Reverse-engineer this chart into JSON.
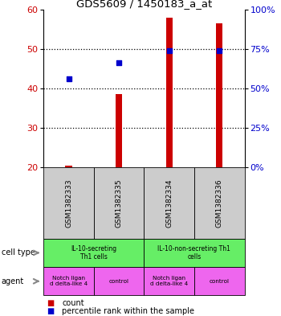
{
  "title": "GDS5609 / 1450183_a_at",
  "samples": [
    "GSM1382333",
    "GSM1382335",
    "GSM1382334",
    "GSM1382336"
  ],
  "bar_values": [
    20.5,
    38.5,
    58.0,
    56.5
  ],
  "bar_bottom": [
    20,
    20,
    20,
    20
  ],
  "scatter_values": [
    42.5,
    46.5,
    49.5,
    49.5
  ],
  "ylim": [
    20,
    60
  ],
  "y_left_ticks": [
    20,
    30,
    40,
    50,
    60
  ],
  "y_right_ticks": [
    0,
    25,
    50,
    75,
    100
  ],
  "y_right_labels": [
    "0%",
    "25%",
    "50%",
    "75%",
    "100%"
  ],
  "bar_color": "#cc0000",
  "scatter_color": "#0000cc",
  "cell_type_labels": [
    "IL-10-secreting\nTh1 cells",
    "IL-10-non-secreting Th1\ncells"
  ],
  "cell_type_color": "#66ee66",
  "agent_labels": [
    "Notch ligan\nd delta-like 4",
    "control",
    "Notch ligan\nd delta-like 4",
    "control"
  ],
  "agent_color": "#ee66ee",
  "sample_bg_color": "#cccccc",
  "legend_count_color": "#cc0000",
  "legend_pct_color": "#0000cc"
}
